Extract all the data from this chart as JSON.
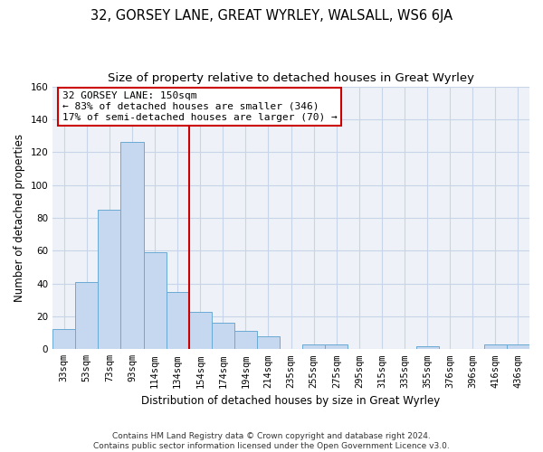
{
  "title": "32, GORSEY LANE, GREAT WYRLEY, WALSALL, WS6 6JA",
  "subtitle": "Size of property relative to detached houses in Great Wyrley",
  "xlabel": "Distribution of detached houses by size in Great Wyrley",
  "ylabel": "Number of detached properties",
  "bar_labels": [
    "33sqm",
    "53sqm",
    "73sqm",
    "93sqm",
    "114sqm",
    "134sqm",
    "154sqm",
    "174sqm",
    "194sqm",
    "214sqm",
    "235sqm",
    "255sqm",
    "275sqm",
    "295sqm",
    "315sqm",
    "335sqm",
    "355sqm",
    "376sqm",
    "396sqm",
    "416sqm",
    "436sqm"
  ],
  "bar_heights": [
    12,
    41,
    85,
    126,
    59,
    35,
    23,
    16,
    11,
    8,
    0,
    3,
    3,
    0,
    0,
    0,
    2,
    0,
    0,
    3,
    3
  ],
  "bar_color": "#c5d8f0",
  "bar_edge_color": "#6aaad4",
  "ylim": [
    0,
    160
  ],
  "yticks": [
    0,
    20,
    40,
    60,
    80,
    100,
    120,
    140,
    160
  ],
  "vline_color": "#cc0000",
  "annotation_line1": "32 GORSEY LANE: 150sqm",
  "annotation_line2": "← 83% of detached houses are smaller (346)",
  "annotation_line3": "17% of semi-detached houses are larger (70) →",
  "footer_text": "Contains HM Land Registry data © Crown copyright and database right 2024.\nContains public sector information licensed under the Open Government Licence v3.0.",
  "figure_bg": "#ffffff",
  "axes_bg": "#eef2f8",
  "grid_color": "#c8d4e8",
  "title_fontsize": 10.5,
  "subtitle_fontsize": 9.5,
  "axis_label_fontsize": 8.5,
  "tick_fontsize": 7.5,
  "footer_fontsize": 6.5,
  "annotation_fontsize": 8
}
